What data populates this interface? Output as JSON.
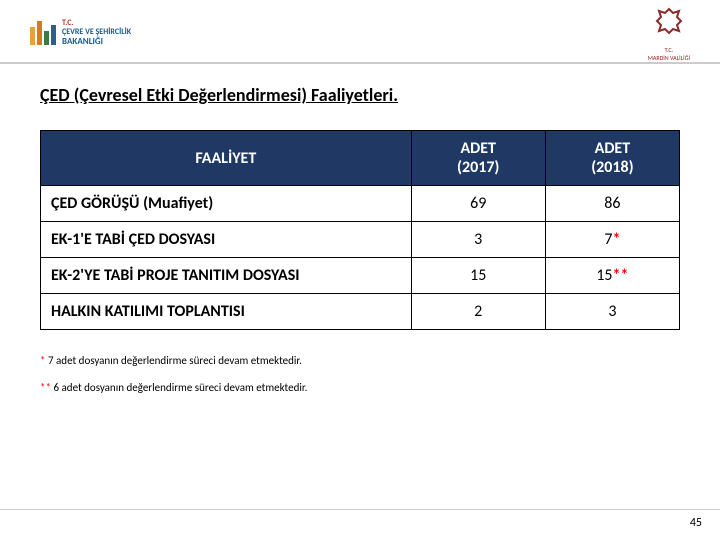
{
  "header": {
    "left_logo": {
      "line1": "T.C.",
      "line2": "ÇEVRE VE ŞEHİRCİLİK",
      "line3": "BAKANLIĞI",
      "bar_colors": [
        "#e8a23a",
        "#d47a1f",
        "#3b7a4a",
        "#2d5f8a"
      ]
    },
    "right_logo": {
      "line1": "T.C.",
      "line2": "MARDİN VALİLİĞİ",
      "stroke_color": "#8a2a2a"
    }
  },
  "title": "ÇED (Çevresel Etki Değerlendirmesi) Faaliyetleri.",
  "table": {
    "header_bg": "#1f3864",
    "header_fg": "#ffffff",
    "border_color": "#000000",
    "columns": [
      {
        "label": "FAALİYET",
        "width_pct": 58,
        "align": "left"
      },
      {
        "label_line1": "ADET",
        "label_line2": "(2017)",
        "width_pct": 21,
        "align": "center"
      },
      {
        "label_line1": "ADET",
        "label_line2": "(2018)",
        "width_pct": 21,
        "align": "center"
      }
    ],
    "rows": [
      {
        "activity": "ÇED GÖRÜŞÜ (Muafiyet)",
        "v2017": "69",
        "v2018": "86",
        "suffix": ""
      },
      {
        "activity": "EK-1'E TABİ ÇED DOSYASI",
        "v2017": "3",
        "v2018": "7",
        "suffix": "*"
      },
      {
        "activity": "EK-2'YE TABİ PROJE TANITIM DOSYASI",
        "v2017": "15",
        "v2018": "15",
        "suffix": "**"
      },
      {
        "activity": "HALKIN KATILIMI TOPLANTISI",
        "v2017": "2",
        "v2018": "3",
        "suffix": ""
      }
    ]
  },
  "footnotes": {
    "n1_mark": "*",
    "n1_text": "   7 adet dosyanın değerlendirme süreci devam etmektedir.",
    "n2_mark": "**",
    "n2_text": " 6 adet dosyanın değerlendirme süreci devam etmektedir."
  },
  "page_number": "45",
  "colors": {
    "red": "#ff0000",
    "background": "#ffffff"
  }
}
